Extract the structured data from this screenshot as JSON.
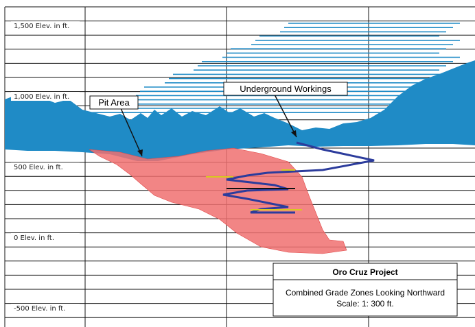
{
  "elevation_labels": [
    "1,500 Elev. in ft.",
    "1,000 Elev. in ft.",
    "500 Elev. in ft.",
    "0 Elev. in ft.",
    "-500 Elev. in ft."
  ],
  "callouts": {
    "pit_area": "Pit Area",
    "underground_workings": "Underground Workings"
  },
  "title_box": {
    "title": "Oro Cruz Project",
    "subtitle": "Combined Grade Zones Looking Northward",
    "scale": "Scale:  1: 300 ft."
  }
}
